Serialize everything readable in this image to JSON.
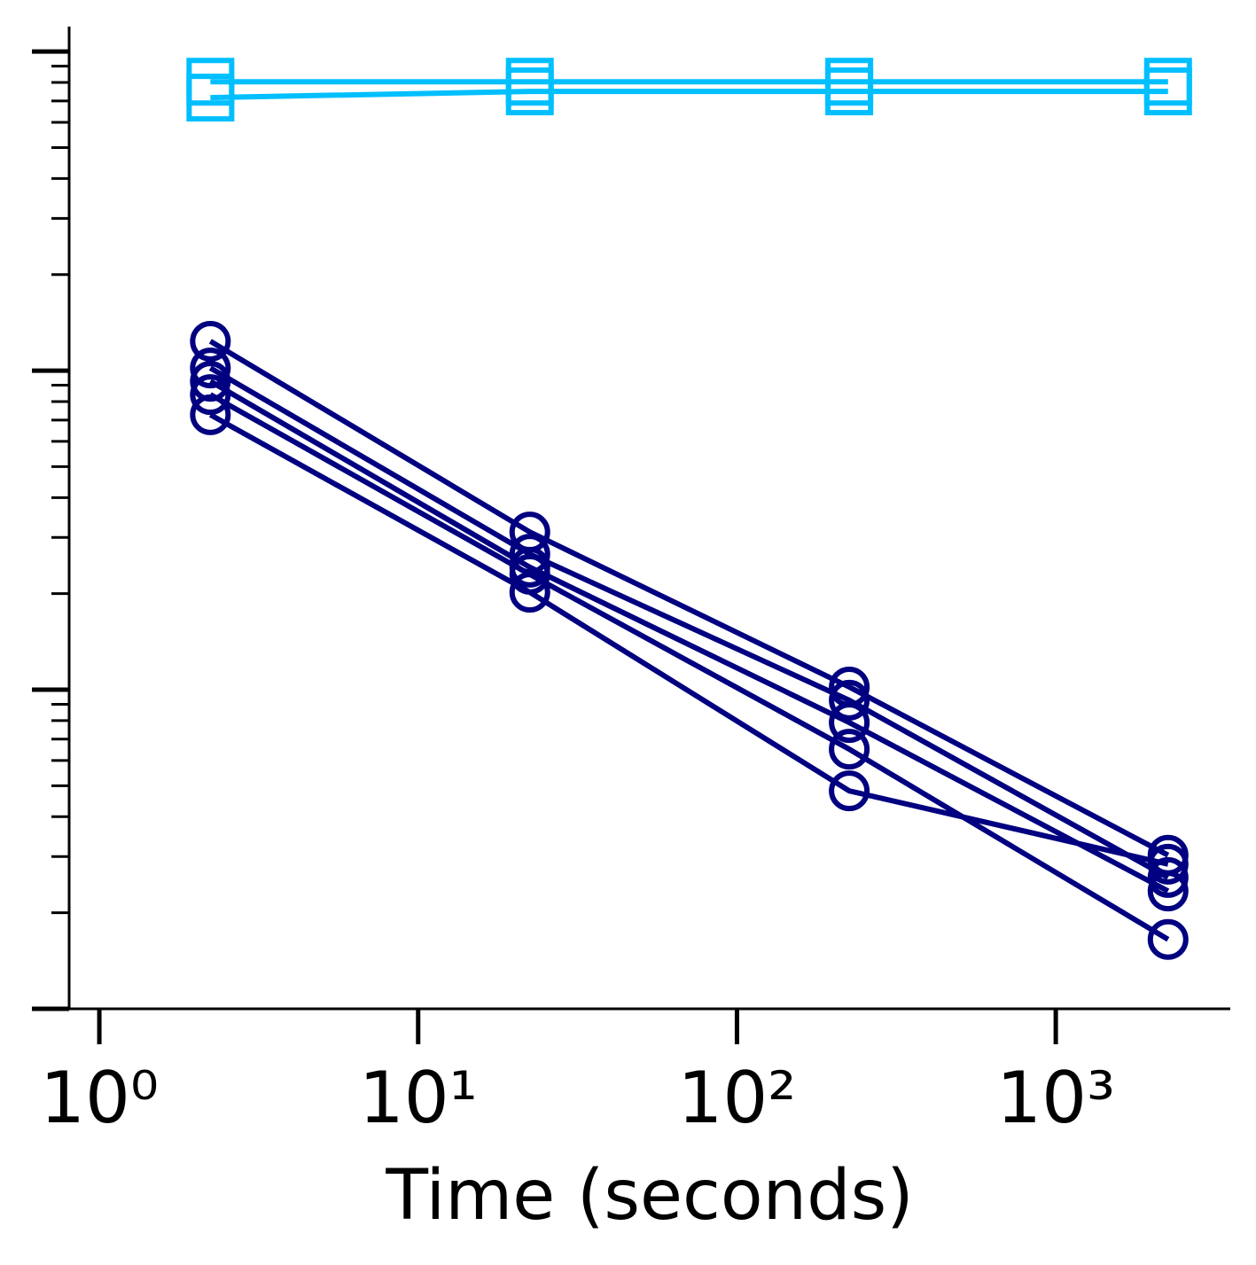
{
  "chart_data": {
    "type": "line",
    "xlabel": "Time (seconds)",
    "xscale": "log",
    "yscale": "log",
    "xlim": [
      0.804,
      3527
    ],
    "ylim": [
      0.001,
      1.197
    ],
    "xticks": [
      {
        "value": 1,
        "label": "10⁰"
      },
      {
        "value": 10,
        "label": "10¹"
      },
      {
        "value": 100,
        "label": "10²"
      },
      {
        "value": 1000,
        "label": "10³"
      }
    ],
    "yticks": [
      0.001,
      0.01,
      0.1,
      1
    ],
    "series": [
      {
        "color": "#00bfff",
        "marker": "square",
        "x": [
          2.23,
          22.4,
          225,
          2250
        ],
        "values": [
          0.804,
          0.804,
          0.804,
          0.804
        ]
      },
      {
        "color": "#00bfff",
        "marker": "square",
        "x": [
          2.23,
          22.4,
          225,
          2250
        ],
        "values": [
          0.717,
          0.75,
          0.75,
          0.75
        ]
      },
      {
        "color": "#000080",
        "marker": "circle",
        "x": [
          2.23,
          22.4,
          225,
          2250
        ],
        "values": [
          0.1236,
          0.0312,
          0.0102,
          0.00303
        ]
      },
      {
        "color": "#000080",
        "marker": "circle",
        "x": [
          2.23,
          22.4,
          225,
          2250
        ],
        "values": [
          0.1019,
          0.0266,
          0.00927,
          0.00258
        ]
      },
      {
        "color": "#000080",
        "marker": "circle",
        "x": [
          2.23,
          22.4,
          225,
          2250
        ],
        "values": [
          0.0926,
          0.0242,
          0.00789,
          0.00234
        ]
      },
      {
        "color": "#000080",
        "marker": "circle",
        "x": [
          2.23,
          22.4,
          225,
          2250
        ],
        "values": [
          0.0841,
          0.023,
          0.00651,
          0.00165
        ]
      },
      {
        "color": "#000080",
        "marker": "circle",
        "x": [
          2.23,
          22.4,
          225,
          2250
        ],
        "values": [
          0.0727,
          0.0202,
          0.00482,
          0.00284
        ]
      }
    ]
  }
}
